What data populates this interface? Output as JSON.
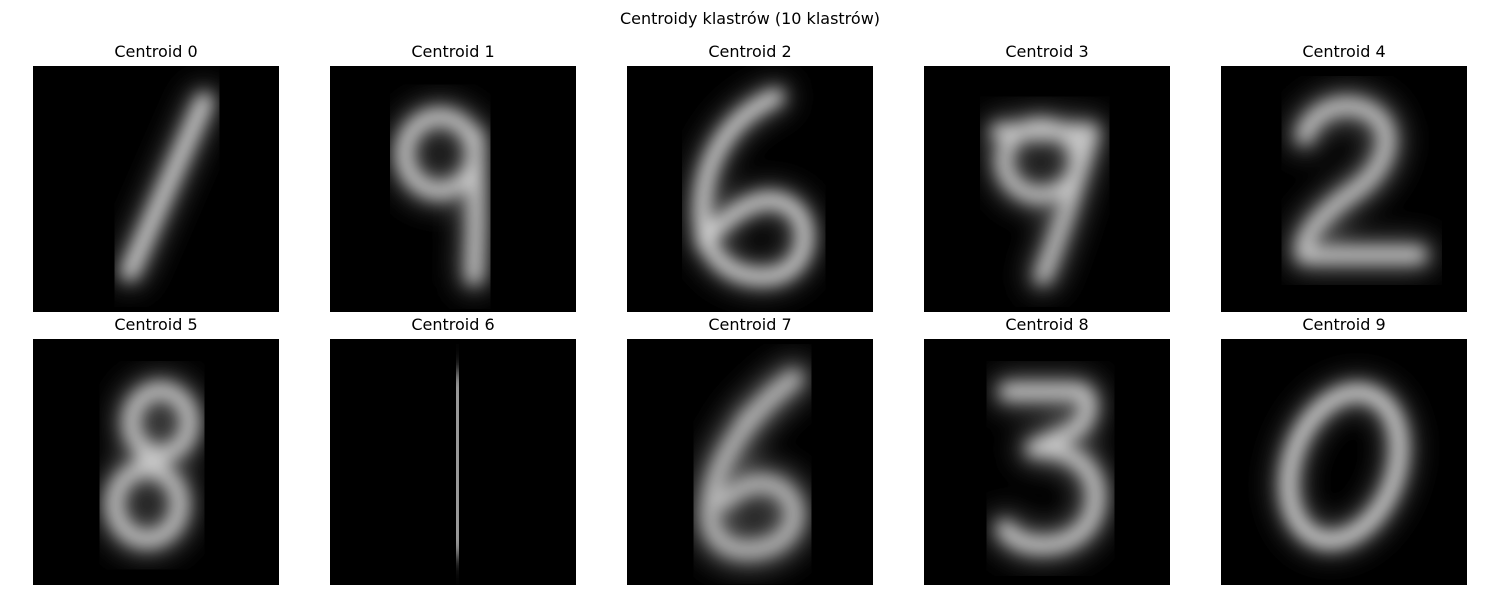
{
  "chart_data": {
    "type": "image-grid",
    "title": "Centroidy klastrów (10 klastrów)",
    "colormap": "gray",
    "panels": [
      {
        "title": "Centroid 0",
        "digit": "1",
        "style": "slanted"
      },
      {
        "title": "Centroid 1",
        "digit": "9"
      },
      {
        "title": "Centroid 2",
        "digit": "6"
      },
      {
        "title": "Centroid 3",
        "digit": "9",
        "style": "seven-like"
      },
      {
        "title": "Centroid 4",
        "digit": "2"
      },
      {
        "title": "Centroid 5",
        "digit": "8"
      },
      {
        "title": "Centroid 6",
        "digit": "1",
        "style": "vertical"
      },
      {
        "title": "Centroid 7",
        "digit": "6",
        "style": "blurred"
      },
      {
        "title": "Centroid 8",
        "digit": "3"
      },
      {
        "title": "Centroid 9",
        "digit": "0"
      }
    ]
  }
}
